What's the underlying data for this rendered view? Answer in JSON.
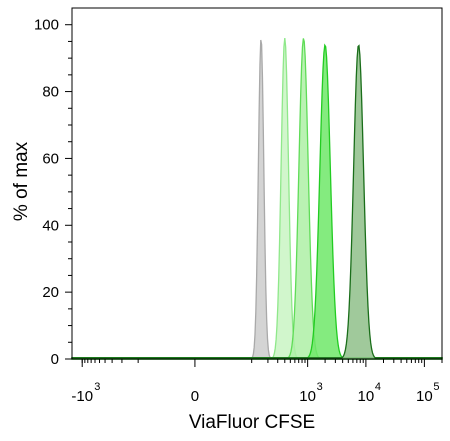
{
  "chart_data": {
    "type": "area",
    "title": "",
    "xlabel": "ViaFluor CFSE",
    "ylabel": "% of max",
    "x_scale": "biexponential",
    "xlim": [
      -1500,
      200000
    ],
    "ylim": [
      0,
      105
    ],
    "yticks": [
      0,
      20,
      40,
      60,
      80,
      100
    ],
    "xticks": [
      {
        "value": -1000,
        "base": "-10",
        "exp": "3"
      },
      {
        "value": 0,
        "base": "0",
        "exp": ""
      },
      {
        "value": 1000,
        "base": "10",
        "exp": "3"
      },
      {
        "value": 10000,
        "base": "10",
        "exp": "4"
      },
      {
        "value": 100000,
        "base": "10",
        "exp": "5"
      }
    ],
    "grid": false,
    "legend": "none",
    "series": [
      {
        "peak_x": 150,
        "peak_y": 96,
        "spread": 0.05,
        "fill": "#cccccc",
        "stroke": "#a9a9a9"
      },
      {
        "peak_x": 400,
        "peak_y": 96,
        "spread": 0.065,
        "fill": "#c9f5c3",
        "stroke": "#8fe88a"
      },
      {
        "peak_x": 850,
        "peak_y": 96,
        "spread": 0.08,
        "fill": "#aef0a6",
        "stroke": "#5fdc57"
      },
      {
        "peak_x": 2000,
        "peak_y": 94,
        "spread": 0.09,
        "fill": "#6fe869",
        "stroke": "#22cc22"
      },
      {
        "peak_x": 7500,
        "peak_y": 94,
        "spread": 0.085,
        "fill": "#8fbf8a",
        "stroke": "#1a6e1a"
      }
    ]
  }
}
